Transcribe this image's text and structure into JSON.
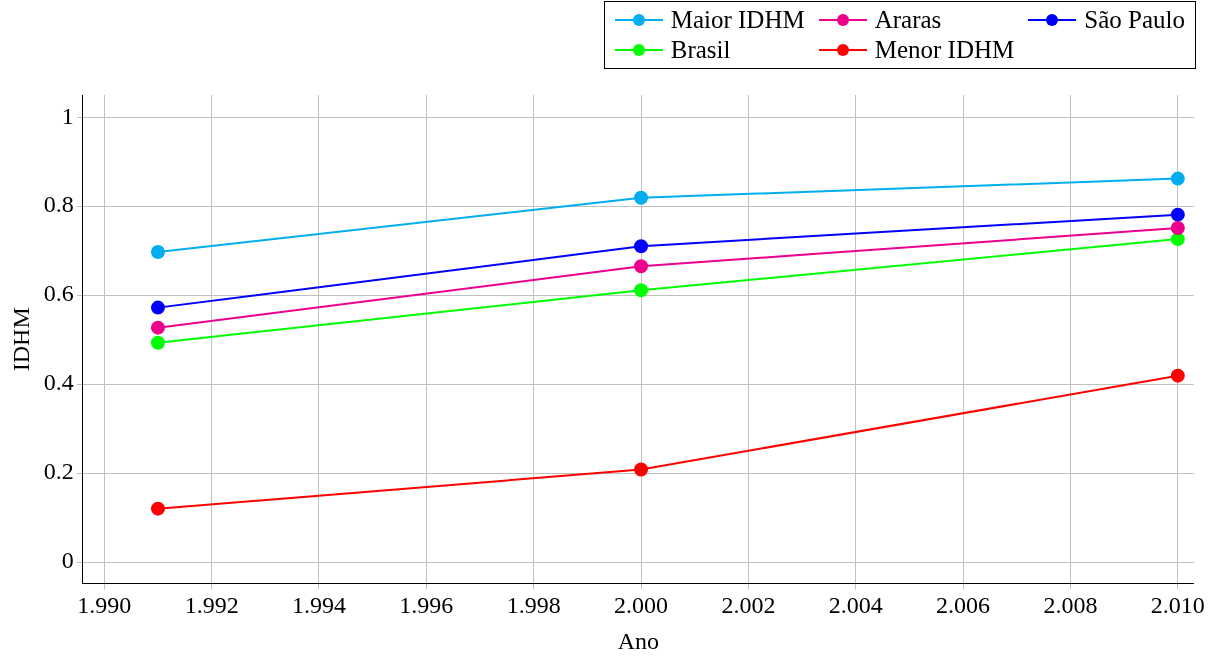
{
  "chart_data": {
    "type": "line",
    "xlabel": "Ano",
    "ylabel": "IDHM",
    "xlim": [
      1.9896,
      2.0103
    ],
    "ylim": [
      -0.048,
      1.05
    ],
    "xticks": [
      {
        "value": 1.99,
        "label": "1.990"
      },
      {
        "value": 1.992,
        "label": "1.992"
      },
      {
        "value": 1.994,
        "label": "1.994"
      },
      {
        "value": 1.996,
        "label": "1.996"
      },
      {
        "value": 1.998,
        "label": "1.998"
      },
      {
        "value": 2,
        "label": "2.000"
      },
      {
        "value": 2.002,
        "label": "2.002"
      },
      {
        "value": 2.004,
        "label": "2.004"
      },
      {
        "value": 2.006,
        "label": "2.006"
      },
      {
        "value": 2.008,
        "label": "2.008"
      },
      {
        "value": 2.01,
        "label": "2.010"
      }
    ],
    "yticks": [
      0,
      0.2,
      0.4,
      0.6,
      0.8,
      1
    ],
    "x": [
      1.991,
      2,
      2.01
    ],
    "series": [
      {
        "name": "Maior IDHM",
        "color": "#00aeef",
        "values": [
          0.697,
          0.819,
          0.862
        ]
      },
      {
        "name": "Araras",
        "color": "#ec008c",
        "values": [
          0.527,
          0.665,
          0.751
        ]
      },
      {
        "name": "São Paulo",
        "color": "#0000ff",
        "values": [
          0.572,
          0.71,
          0.781
        ]
      },
      {
        "name": "Brasil",
        "color": "#00ff00",
        "values": [
          0.493,
          0.611,
          0.726
        ]
      },
      {
        "name": "Menor IDHM",
        "color": "#ff0000",
        "values": [
          0.12,
          0.208,
          0.419
        ]
      }
    ],
    "grid": true,
    "legend": "top right",
    "marker": "circle",
    "line_style": "solid"
  }
}
